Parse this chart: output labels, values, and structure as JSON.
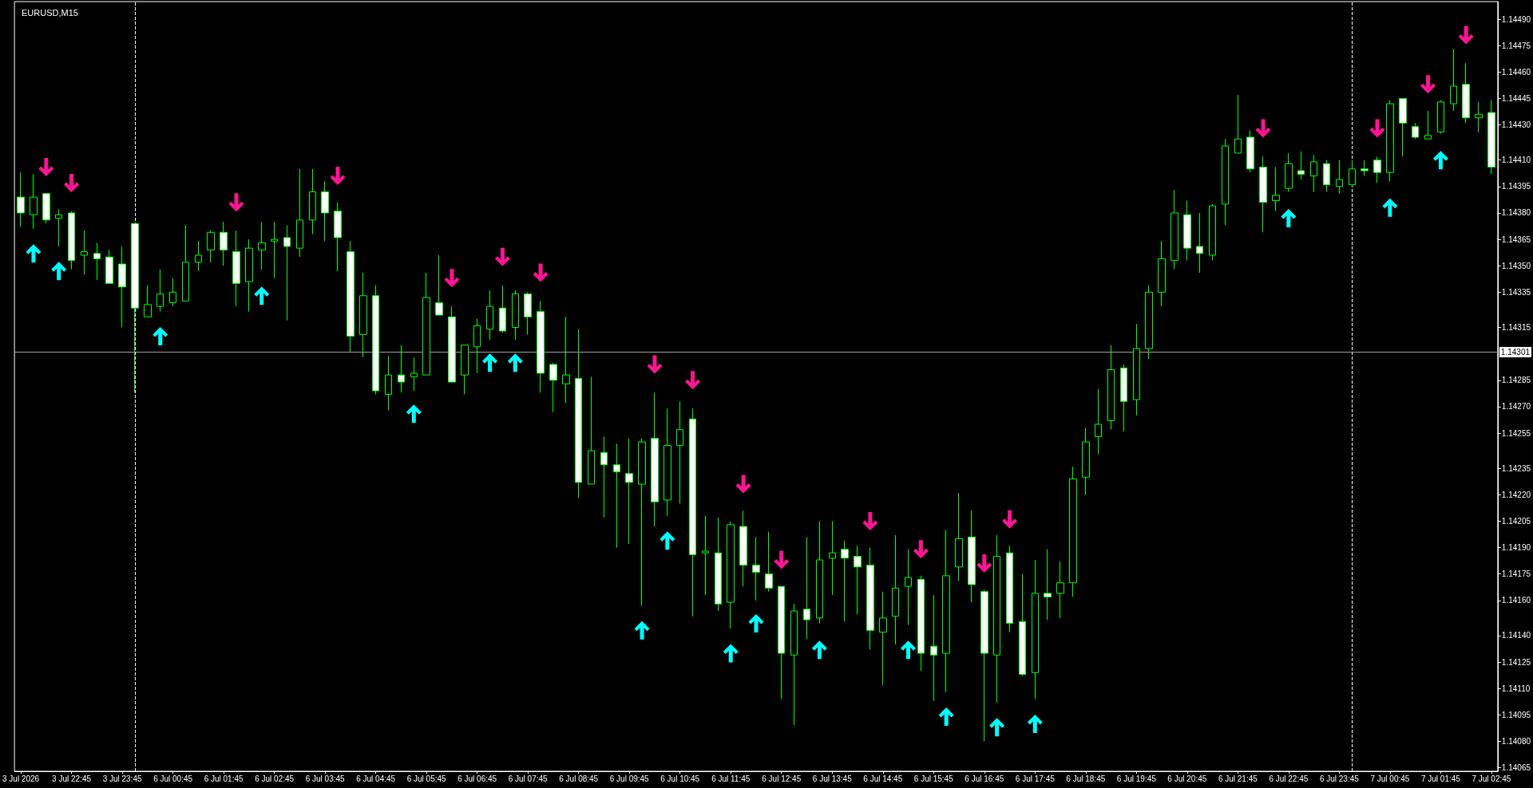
{
  "chart_data": {
    "type": "candlestick",
    "title": "EURUSD,M15",
    "categories": [
      "3 Jul 2026",
      null,
      null,
      null,
      "3 Jul 22:45",
      null,
      null,
      null,
      "3 Jul 23:45",
      null,
      null,
      null,
      "6 Jul 00:45",
      null,
      null,
      null,
      "6 Jul 01:45",
      null,
      null,
      null,
      "6 Jul 02:45",
      null,
      null,
      null,
      "6 Jul 03:45",
      null,
      null,
      null,
      "6 Jul 04:45",
      null,
      null,
      null,
      "6 Jul 05:45",
      null,
      null,
      null,
      "6 Jul 06:45",
      null,
      null,
      null,
      "6 Jul 07:45",
      null,
      null,
      null,
      "6 Jul 08:45",
      null,
      null,
      null,
      "6 Jul 09:45",
      null,
      null,
      null,
      "6 Jul 10:45",
      null,
      null,
      null,
      "6 Jul 11:45",
      null,
      null,
      null,
      "6 Jul 12:45",
      null,
      null,
      null,
      "6 Jul 13:45",
      null,
      null,
      null,
      "6 Jul 14:45",
      null,
      null,
      null,
      "6 Jul 15:45",
      null,
      null,
      null,
      "6 Jul 16:45",
      null,
      null,
      null,
      "6 Jul 17:45",
      null,
      null,
      null,
      "6 Jul 18:45",
      null,
      null,
      null,
      "6 Jul 19:45",
      null,
      null,
      null,
      "6 Jul 20:45",
      null,
      null,
      null,
      "6 Jul 21:45",
      null,
      null,
      null,
      "6 Jul 22:45",
      null,
      null,
      null,
      "6 Jul 23:45",
      null,
      null,
      null,
      "7 Jul 00:45",
      null,
      null,
      null,
      "7 Jul 01:45",
      null,
      null,
      null,
      "7 Jul 02:45"
    ],
    "series": [
      {
        "color": "#00ff00",
        "ohlc": [
          [
            1.14389,
            1.14403,
            1.14372,
            1.1438
          ],
          [
            1.14379,
            1.14402,
            1.14371,
            1.14389
          ],
          [
            1.14391,
            1.14391,
            1.14374,
            1.14376
          ],
          [
            1.14377,
            1.14382,
            1.14361,
            1.14379
          ],
          [
            1.1438,
            1.14381,
            1.14348,
            1.14353
          ],
          [
            1.14356,
            1.1437,
            1.14345,
            1.14358
          ],
          [
            1.14357,
            1.14363,
            1.14342,
            1.14354
          ],
          [
            1.14355,
            1.14359,
            1.1434,
            1.1434
          ],
          [
            1.14351,
            1.14361,
            1.14315,
            1.14338
          ],
          [
            1.14374,
            1.14374,
            1.14278,
            1.14326
          ],
          [
            1.14321,
            1.14339,
            1.14321,
            1.14328
          ],
          [
            1.14327,
            1.14348,
            1.14324,
            1.14334
          ],
          [
            1.14329,
            1.14343,
            1.14327,
            1.14335
          ],
          [
            1.1433,
            1.14373,
            1.1433,
            1.14352
          ],
          [
            1.14352,
            1.14364,
            1.14347,
            1.14356
          ],
          [
            1.14359,
            1.1437,
            1.14352,
            1.14369
          ],
          [
            1.14369,
            1.14375,
            1.1435,
            1.14359
          ],
          [
            1.14358,
            1.1437,
            1.14327,
            1.1434
          ],
          [
            1.14341,
            1.14365,
            1.14324,
            1.1436
          ],
          [
            1.14359,
            1.14375,
            1.14348,
            1.14363
          ],
          [
            1.14364,
            1.14375,
            1.14343,
            1.14365
          ],
          [
            1.14366,
            1.14373,
            1.14319,
            1.14361
          ],
          [
            1.1436,
            1.14405,
            1.14355,
            1.14376
          ],
          [
            1.14376,
            1.14405,
            1.14368,
            1.14392
          ],
          [
            1.14392,
            1.14398,
            1.14364,
            1.1438
          ],
          [
            1.14381,
            1.14386,
            1.14347,
            1.14366
          ],
          [
            1.14358,
            1.14364,
            1.14301,
            1.1431
          ],
          [
            1.14311,
            1.14346,
            1.14298,
            1.14333
          ],
          [
            1.14333,
            1.14339,
            1.14277,
            1.14279
          ],
          [
            1.14277,
            1.14299,
            1.14268,
            1.14288
          ],
          [
            1.14288,
            1.14305,
            1.14278,
            1.14284
          ],
          [
            1.14287,
            1.14298,
            1.14279,
            1.14289
          ],
          [
            1.14288,
            1.14346,
            1.14288,
            1.14332
          ],
          [
            1.14329,
            1.14356,
            1.14322,
            1.14322
          ],
          [
            1.14321,
            1.14327,
            1.14284,
            1.14284
          ],
          [
            1.14288,
            1.14305,
            1.14277,
            1.14305
          ],
          [
            1.14304,
            1.1432,
            1.14289,
            1.14316
          ],
          [
            1.14314,
            1.14336,
            1.14308,
            1.14327
          ],
          [
            1.14326,
            1.14339,
            1.14312,
            1.14313
          ],
          [
            1.14315,
            1.14336,
            1.14308,
            1.14334
          ],
          [
            1.14334,
            1.14335,
            1.14311,
            1.14321
          ],
          [
            1.14324,
            1.1433,
            1.14278,
            1.14289
          ],
          [
            1.14294,
            1.14295,
            1.14267,
            1.14285
          ],
          [
            1.14283,
            1.14321,
            1.14272,
            1.14288
          ],
          [
            1.14286,
            1.14314,
            1.14218,
            1.14227
          ],
          [
            1.14226,
            1.14287,
            1.14226,
            1.14245
          ],
          [
            1.14244,
            1.14253,
            1.14207,
            1.14237
          ],
          [
            1.14237,
            1.14249,
            1.1419,
            1.14233
          ],
          [
            1.14232,
            1.14252,
            1.14192,
            1.14227
          ],
          [
            1.14226,
            1.14252,
            1.14157,
            1.1425
          ],
          [
            1.14252,
            1.14278,
            1.14202,
            1.14216
          ],
          [
            1.14217,
            1.14269,
            1.14208,
            1.14248
          ],
          [
            1.14248,
            1.14273,
            1.14215,
            1.14257
          ],
          [
            1.14263,
            1.14269,
            1.14151,
            1.14186
          ],
          [
            1.14187,
            1.14208,
            1.14163,
            1.14188
          ],
          [
            1.14187,
            1.14207,
            1.14154,
            1.14158
          ],
          [
            1.14159,
            1.14205,
            1.14144,
            1.14203
          ],
          [
            1.14202,
            1.14211,
            1.14168,
            1.1418
          ],
          [
            1.1418,
            1.14196,
            1.1416,
            1.14176
          ],
          [
            1.14175,
            1.14199,
            1.14165,
            1.14167
          ],
          [
            1.14168,
            1.14168,
            1.14104,
            1.1413
          ],
          [
            1.14129,
            1.14158,
            1.14089,
            1.14154
          ],
          [
            1.14155,
            1.14196,
            1.14138,
            1.14149
          ],
          [
            1.1415,
            1.14205,
            1.14147,
            1.14183
          ],
          [
            1.14184,
            1.14205,
            1.14163,
            1.14187
          ],
          [
            1.14189,
            1.14194,
            1.14148,
            1.14184
          ],
          [
            1.14185,
            1.14191,
            1.14152,
            1.14179
          ],
          [
            1.1418,
            1.1419,
            1.14132,
            1.14143
          ],
          [
            1.14142,
            1.14165,
            1.14112,
            1.1415
          ],
          [
            1.14151,
            1.14197,
            1.14135,
            1.14167
          ],
          [
            1.14168,
            1.14189,
            1.14146,
            1.14173
          ],
          [
            1.14172,
            1.14174,
            1.1412,
            1.1413
          ],
          [
            1.14134,
            1.14163,
            1.14103,
            1.14129
          ],
          [
            1.1413,
            1.142,
            1.14108,
            1.14174
          ],
          [
            1.14179,
            1.14221,
            1.14171,
            1.14195
          ],
          [
            1.14196,
            1.14211,
            1.14159,
            1.14169
          ],
          [
            1.14165,
            1.14166,
            1.1408,
            1.1413
          ],
          [
            1.14129,
            1.14197,
            1.14102,
            1.14185
          ],
          [
            1.14187,
            1.14191,
            1.14142,
            1.14147
          ],
          [
            1.14148,
            1.14175,
            1.14117,
            1.14118
          ],
          [
            1.14119,
            1.14183,
            1.14104,
            1.14164
          ],
          [
            1.14164,
            1.14189,
            1.14149,
            1.14162
          ],
          [
            1.14164,
            1.14182,
            1.1415,
            1.1417
          ],
          [
            1.1417,
            1.14236,
            1.14162,
            1.14229
          ],
          [
            1.1423,
            1.14258,
            1.1422,
            1.1425
          ],
          [
            1.14253,
            1.1428,
            1.14243,
            1.1426
          ],
          [
            1.14262,
            1.14305,
            1.14257,
            1.14291
          ],
          [
            1.14292,
            1.14294,
            1.14256,
            1.14273
          ],
          [
            1.14274,
            1.14317,
            1.14265,
            1.14303
          ],
          [
            1.14303,
            1.14339,
            1.14297,
            1.14335
          ],
          [
            1.14335,
            1.14364,
            1.14327,
            1.14354
          ],
          [
            1.14353,
            1.14393,
            1.14348,
            1.1438
          ],
          [
            1.14379,
            1.14387,
            1.14353,
            1.1436
          ],
          [
            1.14361,
            1.1438,
            1.14346,
            1.14357
          ],
          [
            1.14356,
            1.14385,
            1.14353,
            1.14384
          ],
          [
            1.14385,
            1.14422,
            1.14373,
            1.14418
          ],
          [
            1.14414,
            1.14447,
            1.14414,
            1.14422
          ],
          [
            1.14423,
            1.14427,
            1.14403,
            1.14405
          ],
          [
            1.14406,
            1.14412,
            1.14369,
            1.14386
          ],
          [
            1.14387,
            1.14406,
            1.14381,
            1.1439
          ],
          [
            1.14394,
            1.14414,
            1.14392,
            1.14408
          ],
          [
            1.14404,
            1.14415,
            1.14399,
            1.14402
          ],
          [
            1.14401,
            1.14413,
            1.14392,
            1.14409
          ],
          [
            1.14408,
            1.1441,
            1.14392,
            1.14396
          ],
          [
            1.14395,
            1.1441,
            1.14391,
            1.14399
          ],
          [
            1.14396,
            1.1441,
            1.14395,
            1.14405
          ],
          [
            1.14405,
            1.1441,
            1.14401,
            1.14404
          ],
          [
            1.1441,
            1.14412,
            1.14397,
            1.14403
          ],
          [
            1.14403,
            1.14444,
            1.14398,
            1.14442
          ],
          [
            1.14445,
            1.14445,
            1.14412,
            1.14431
          ],
          [
            1.14429,
            1.14431,
            1.14422,
            1.14423
          ],
          [
            1.14422,
            1.14438,
            1.14422,
            1.14424
          ],
          [
            1.14426,
            1.14444,
            1.14425,
            1.14443
          ],
          [
            1.14442,
            1.14473,
            1.14438,
            1.14452
          ],
          [
            1.14453,
            1.14465,
            1.14431,
            1.14434
          ],
          [
            1.14434,
            1.14443,
            1.14426,
            1.14436
          ],
          [
            1.14437,
            1.14444,
            1.14402,
            1.14406
          ]
        ]
      },
      {
        "type": "scatter",
        "color": "#00ffff",
        "marker": "triangle",
        "values": [
          null,
          1.14357,
          null,
          1.14347,
          null,
          null,
          null,
          null,
          null,
          null,
          null,
          1.1431,
          null,
          null,
          null,
          null,
          null,
          null,
          null,
          1.14333,
          null,
          null,
          null,
          null,
          null,
          null,
          null,
          null,
          null,
          null,
          null,
          1.14266,
          null,
          null,
          null,
          null,
          null,
          1.14295,
          null,
          1.14295,
          null,
          null,
          null,
          null,
          null,
          null,
          null,
          null,
          null,
          1.14143,
          null,
          1.14194,
          null,
          null,
          null,
          null,
          1.1413,
          null,
          1.14147,
          null,
          null,
          null,
          null,
          1.14132,
          null,
          null,
          null,
          null,
          null,
          null,
          1.14132,
          null,
          null,
          1.14094,
          null,
          null,
          null,
          1.14088,
          null,
          null,
          1.1409,
          null,
          null,
          null,
          null,
          null,
          null,
          null,
          null,
          null,
          null,
          null,
          null,
          null,
          null,
          null,
          null,
          null,
          null,
          null,
          1.14377,
          null,
          null,
          null,
          null,
          null,
          null,
          null,
          1.14383,
          null,
          null,
          null,
          1.1441,
          null,
          null,
          null,
          null
        ]
      },
      {
        "type": "scatter",
        "color": "#ff1493",
        "marker": "triangle",
        "values": [
          null,
          null,
          1.14406,
          null,
          1.14397,
          null,
          null,
          null,
          null,
          null,
          null,
          null,
          null,
          null,
          null,
          null,
          null,
          1.14386,
          null,
          null,
          null,
          null,
          null,
          null,
          null,
          1.14401,
          null,
          null,
          null,
          null,
          null,
          null,
          null,
          null,
          1.14343,
          null,
          null,
          null,
          1.14355,
          null,
          null,
          1.14346,
          null,
          null,
          null,
          null,
          null,
          null,
          null,
          null,
          1.14294,
          null,
          null,
          1.14285,
          null,
          null,
          null,
          1.14226,
          null,
          null,
          1.14183,
          null,
          null,
          null,
          null,
          null,
          null,
          1.14205,
          null,
          null,
          null,
          1.14189,
          null,
          null,
          null,
          null,
          1.14181,
          null,
          1.14206,
          null,
          null,
          null,
          null,
          null,
          null,
          null,
          null,
          null,
          null,
          null,
          null,
          null,
          null,
          null,
          null,
          null,
          null,
          null,
          1.14428,
          null,
          null,
          null,
          null,
          null,
          null,
          null,
          null,
          1.14428,
          null,
          null,
          null,
          1.14453,
          null,
          null,
          1.14481,
          null,
          null
        ]
      }
    ],
    "ylim": [
      1.14063,
      1.145
    ],
    "yticks": [
      {
        "value": 1.1449,
        "label": "1.14490"
      },
      1.14475,
      {
        "value": 1.1446,
        "label": "1.14460"
      },
      1.14445,
      {
        "value": 1.1443,
        "label": "1.14430"
      },
      {
        "value": 1.1441,
        "label": "1.14410"
      },
      1.14395,
      {
        "value": 1.1438,
        "label": "1.14380"
      },
      1.14365,
      {
        "value": 1.1435,
        "label": "1.14350"
      },
      1.14335,
      1.14315,
      1.14285,
      {
        "value": 1.1427,
        "label": "1.14270"
      },
      1.14255,
      1.14235,
      {
        "value": 1.1422,
        "label": "1.14220"
      },
      1.14205,
      {
        "value": 1.1419,
        "label": "1.14190"
      },
      1.14175,
      {
        "value": 1.1416,
        "label": "1.14160"
      },
      {
        "value": 1.1414,
        "label": "1.14140"
      },
      1.14125,
      {
        "value": 1.1411,
        "label": "1.14110"
      },
      1.14095,
      {
        "value": 1.1408,
        "label": "1.14080"
      },
      1.14065
    ],
    "ref_lines": [
      {
        "axis": "y",
        "value": 1.14301,
        "label": "1.14301",
        "color": "#9aa3ad"
      }
    ]
  }
}
